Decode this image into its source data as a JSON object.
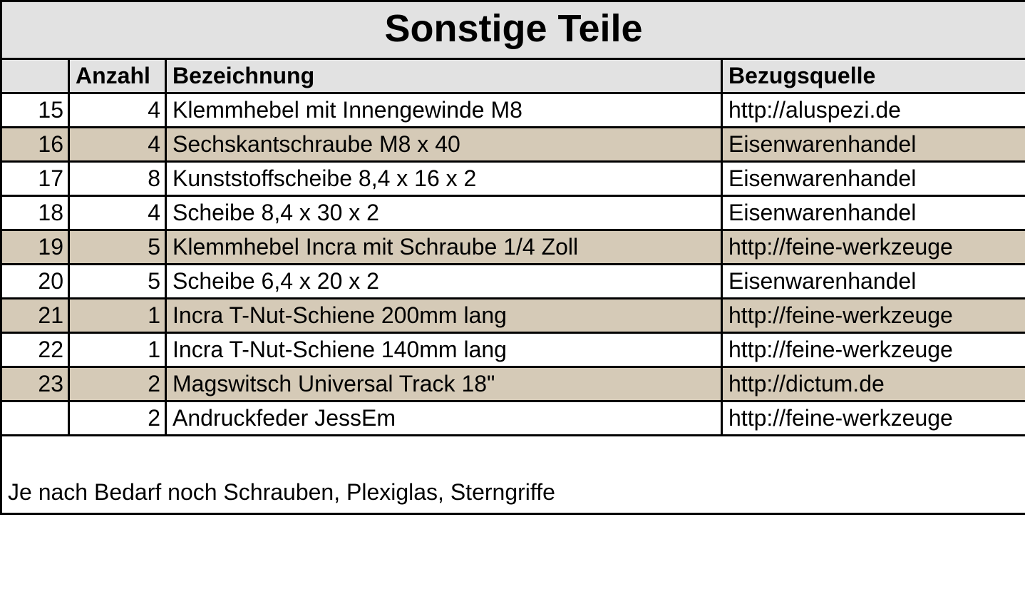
{
  "table": {
    "title": "Sonstige Teile",
    "columns": {
      "idx": "",
      "qty": "Anzahl",
      "desc": "Bezeichnung",
      "src": "Bezugsquelle"
    },
    "columnWidthsPx": [
      95,
      136,
      780,
      427
    ],
    "rows": [
      {
        "idx": "15",
        "qty": "4",
        "desc": "Klemmhebel mit Innengewinde M8",
        "src": "http://aluspezi.de",
        "shaded": false
      },
      {
        "idx": "16",
        "qty": "4",
        "desc": "Sechskantschraube M8 x 40",
        "src": "Eisenwarenhandel",
        "shaded": true
      },
      {
        "idx": "17",
        "qty": "8",
        "desc": "Kunststoffscheibe 8,4 x 16 x 2",
        "src": "Eisenwarenhandel",
        "shaded": false
      },
      {
        "idx": "18",
        "qty": "4",
        "desc": "Scheibe 8,4 x 30 x 2",
        "src": "Eisenwarenhandel",
        "shaded": false
      },
      {
        "idx": "19",
        "qty": "5",
        "desc": "Klemmhebel Incra mit Schraube 1/4 Zoll",
        "src": "http://feine-werkzeuge",
        "shaded": true
      },
      {
        "idx": "20",
        "qty": "5",
        "desc": "Scheibe 6,4 x 20 x 2",
        "src": "Eisenwarenhandel",
        "shaded": false
      },
      {
        "idx": "21",
        "qty": "1",
        "desc": "Incra T-Nut-Schiene 200mm lang",
        "src": "http://feine-werkzeuge",
        "shaded": true
      },
      {
        "idx": "22",
        "qty": "1",
        "desc": "Incra T-Nut-Schiene 140mm lang",
        "src": "http://feine-werkzeuge",
        "shaded": false
      },
      {
        "idx": "23",
        "qty": "2",
        "desc": "Magswitsch Universal Track 18\"",
        "src": "http://dictum.de",
        "shaded": true
      },
      {
        "idx": "",
        "qty": "2",
        "desc": "Andruckfeder JessEm",
        "src": "http://feine-werkzeuge",
        "shaded": false
      }
    ],
    "footer": "Je nach Bedarf noch Schrauben, Plexiglas, Sterngriffe",
    "colors": {
      "headerBg": "#e2e2e2",
      "shadedBg": "#d5cab7",
      "plainBg": "#ffffff",
      "border": "#000000",
      "text": "#000000"
    },
    "fontSizes": {
      "title": 54,
      "header": 32,
      "body": 32,
      "footer": 32
    }
  }
}
